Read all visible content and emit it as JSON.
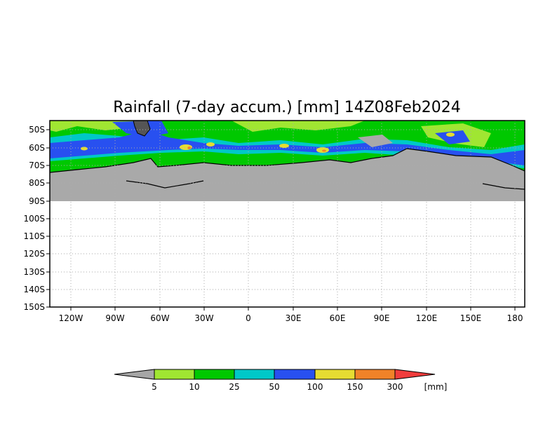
{
  "title": "Rainfall (7-day accum.) [mm] 14Z08Feb2024",
  "map": {
    "lat_labels": [
      "50S",
      "60S",
      "70S",
      "80S",
      "90S",
      "100S",
      "110S",
      "120S",
      "130S",
      "140S",
      "150S"
    ],
    "lon_labels": [
      "120W",
      "90W",
      "60W",
      "30W",
      "0",
      "30E",
      "60E",
      "90E",
      "120E",
      "150E",
      "180"
    ],
    "land_color": "#a9a9a9",
    "grid": "dotted"
  },
  "colorbar": {
    "labels": [
      "5",
      "10",
      "25",
      "50",
      "100",
      "150",
      "300"
    ],
    "unit": "[mm]",
    "under_color": "#a6a6a6",
    "colors": [
      "#a0e632",
      "#00c800",
      "#00c8c8",
      "#2850f0",
      "#e6dc32",
      "#f08228",
      "#f03c3c"
    ],
    "over_color": "#f03c3c"
  }
}
